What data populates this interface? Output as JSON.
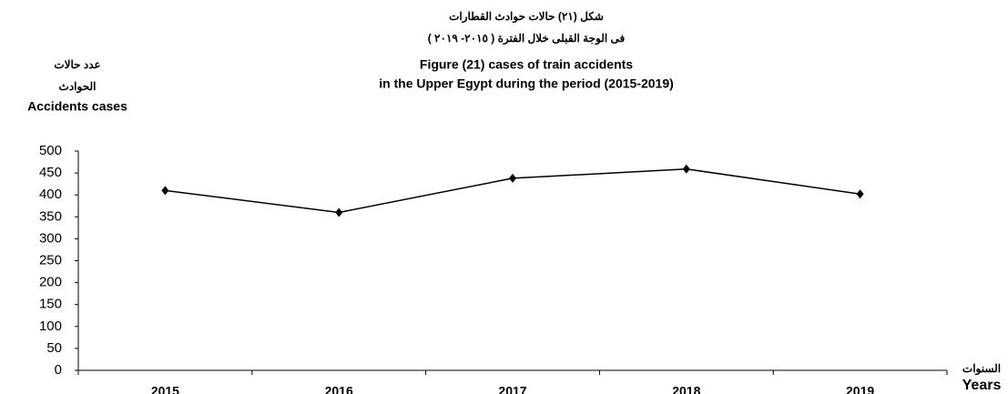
{
  "chart_data": {
    "type": "line",
    "title": [
      "شكل  (٢١) حالات حوادث القطارات",
      "فى الوجة القبلى خلال الفترة ( ٢٠١٥- ٢٠١٩ )",
      "Figure (21) cases of train accidents",
      "in the Upper Egypt during the period  (2015-2019)"
    ],
    "y_label": [
      "عدد حالات",
      "الحوادث",
      "Accidents cases"
    ],
    "x_label": [
      "السنوات",
      "Years"
    ],
    "categories": [
      "2015",
      "2016",
      "2017",
      "2018",
      "2019"
    ],
    "values": [
      410,
      360,
      438,
      459,
      402
    ],
    "color": "#000000",
    "ylim": [
      0,
      500
    ],
    "yticks": [
      0,
      50,
      100,
      150,
      200,
      250,
      300,
      350,
      400,
      450,
      500
    ]
  }
}
